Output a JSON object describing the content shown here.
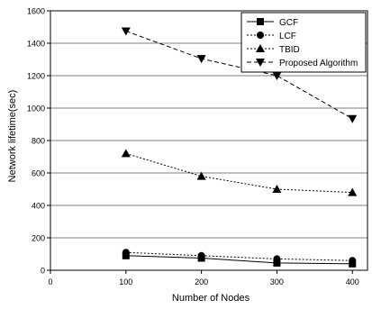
{
  "chart_data": {
    "type": "line",
    "title": "",
    "xlabel": "Number of Nodes",
    "ylabel": "Network lifetime(sec)",
    "xlim": [
      0,
      420
    ],
    "ylim": [
      0,
      1600
    ],
    "x_ticks": [
      0,
      100,
      200,
      300,
      400
    ],
    "y_ticks": [
      0,
      200,
      400,
      600,
      800,
      1000,
      1200,
      1400,
      1600
    ],
    "x_tick_labels": [
      "0",
      "100",
      "200",
      "300",
      "400"
    ],
    "y_tick_labels": [
      "0",
      "200",
      "400",
      "600",
      "800",
      "1000",
      "1200",
      "1400",
      "1600"
    ],
    "grid": "horizontal",
    "legend_position": "top-right",
    "x": [
      100,
      200,
      300,
      400
    ],
    "series": [
      {
        "name": "GCF",
        "values": [
          90,
          75,
          45,
          40
        ],
        "marker": "square",
        "line": "solid",
        "color": "#000000"
      },
      {
        "name": "LCF",
        "values": [
          110,
          90,
          70,
          60
        ],
        "marker": "circle",
        "line": "dotted",
        "color": "#000000"
      },
      {
        "name": "TBID",
        "values": [
          720,
          580,
          500,
          480
        ],
        "marker": "triangle-up",
        "line": "dotted",
        "color": "#000000"
      },
      {
        "name": "Proposed Algorithm",
        "values": [
          1475,
          1305,
          1200,
          935
        ],
        "marker": "triangle-down",
        "line": "dashed",
        "color": "#000000"
      }
    ]
  }
}
